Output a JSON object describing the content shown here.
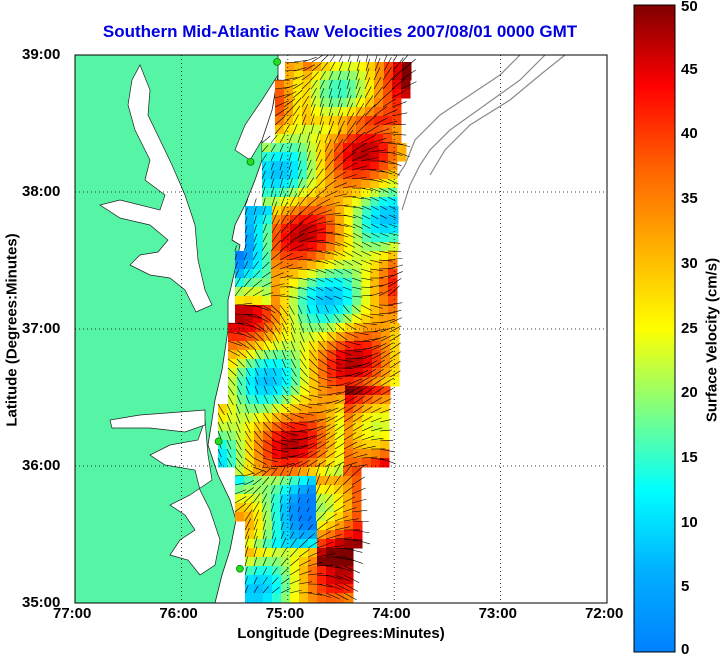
{
  "title": "Southern Mid-Atlantic Raw Velocities 2007/08/01 0000 GMT",
  "xlabel": "Longitude (Degrees:Minutes)",
  "ylabel": "Latitude (Degrees:Minutes)",
  "x_ticks": [
    "77:00",
    "76:00",
    "75:00",
    "74:00",
    "73:00",
    "72:00"
  ],
  "y_ticks": [
    "39:00",
    "38:00",
    "37:00",
    "36:00",
    "35:00"
  ],
  "colorbar": {
    "label": "Surface Velocity (cm/s)",
    "ticks": [
      "0",
      "5",
      "10",
      "15",
      "20",
      "25",
      "30",
      "35",
      "40",
      "45",
      "50"
    ],
    "range": [
      0,
      50
    ],
    "colormap": "jet"
  },
  "colors": {
    "title": "#0000e0",
    "land": "#55f5a5",
    "site": "#22dd22",
    "arrow": "#000000"
  },
  "map": {
    "lon_range": [
      -77,
      -72
    ],
    "lat_range": [
      35,
      39
    ],
    "grid": "dotted",
    "stations": [
      {
        "lon": -75.1,
        "lat": 38.95
      },
      {
        "lon": -75.35,
        "lat": 38.22
      },
      {
        "lon": -75.65,
        "lat": 36.18
      },
      {
        "lon": -75.45,
        "lat": 35.25
      }
    ]
  }
}
